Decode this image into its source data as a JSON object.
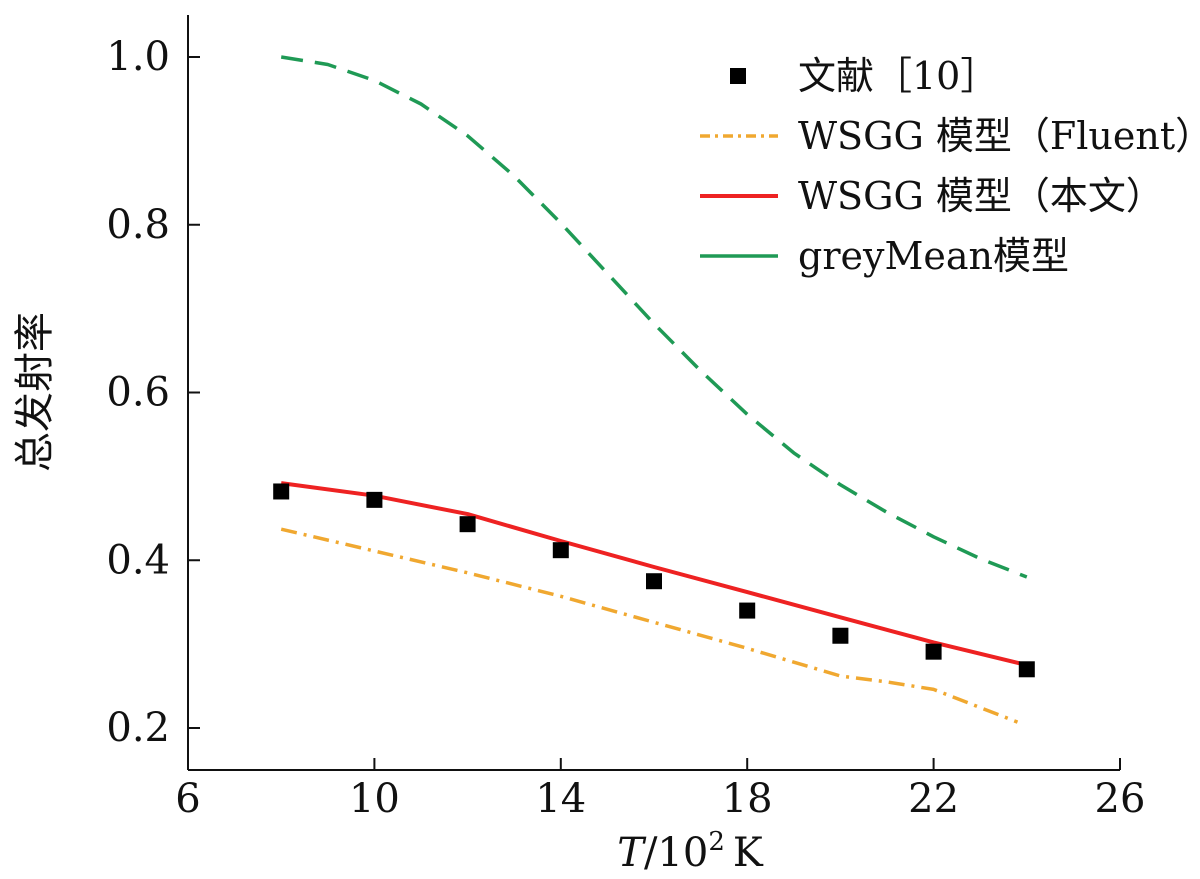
{
  "chart_data": {
    "type": "line",
    "xlabel_italic": "T",
    "xlabel_rest": "/10",
    "xlabel_sup": "2",
    "xlabel_unit": "K",
    "ylabel": "总发射率",
    "xlim": [
      6,
      26
    ],
    "ylim": [
      0.2,
      1.0
    ],
    "xticks": [
      6,
      10,
      14,
      18,
      22,
      26
    ],
    "yticks": [
      {
        "value": 0.2,
        "label": "0.2"
      },
      {
        "value": 0.4,
        "label": "0.4"
      },
      {
        "value": 0.6,
        "label": "0.6"
      },
      {
        "value": 0.8,
        "label": "0.8"
      },
      {
        "value": 1.0,
        "label": "1.0"
      }
    ],
    "grid": false,
    "legend": "top-right",
    "series": [
      {
        "name": "文献［10］",
        "kind": "marker",
        "color": "#000000",
        "x": [
          8,
          10,
          12,
          14,
          16,
          18,
          20,
          22,
          24
        ],
        "y": [
          0.482,
          0.472,
          0.443,
          0.412,
          0.375,
          0.34,
          0.31,
          0.291,
          0.27
        ]
      },
      {
        "name": "WSGG 模型（Fluent）",
        "kind": "dashdot",
        "color": "#f0a830",
        "x": [
          8,
          10,
          12,
          14,
          16,
          18,
          20,
          21,
          22,
          23.8
        ],
        "y": [
          0.437,
          0.411,
          0.385,
          0.357,
          0.326,
          0.295,
          0.262,
          0.255,
          0.246,
          0.207
        ]
      },
      {
        "name": "WSGG 模型（本文）",
        "kind": "solid",
        "color": "#ee2222",
        "x": [
          8,
          10,
          12,
          14,
          16,
          18,
          20,
          22,
          24
        ],
        "y": [
          0.492,
          0.477,
          0.455,
          0.423,
          0.392,
          0.362,
          0.332,
          0.302,
          0.275
        ]
      },
      {
        "name": "greyMean模型",
        "kind": "dashed",
        "color": "#1f9a55",
        "x": [
          8,
          9,
          10,
          11,
          12,
          13,
          14,
          15,
          16,
          17,
          18,
          19,
          20,
          21,
          22,
          23,
          24
        ],
        "y": [
          1.0,
          0.991,
          0.972,
          0.944,
          0.906,
          0.858,
          0.802,
          0.742,
          0.682,
          0.626,
          0.574,
          0.528,
          0.49,
          0.457,
          0.428,
          0.402,
          0.38
        ]
      }
    ]
  }
}
